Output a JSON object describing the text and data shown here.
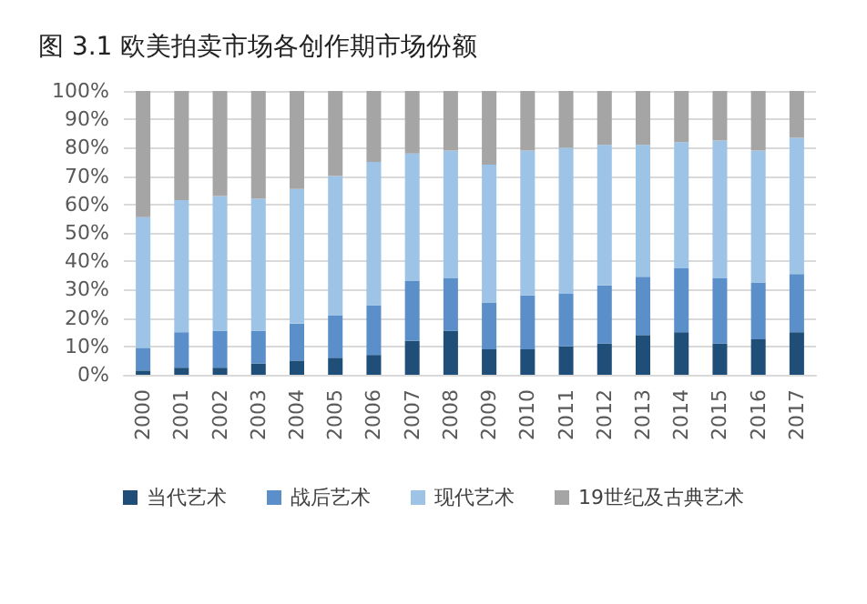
{
  "chart_data": {
    "type": "bar",
    "stacked": true,
    "title": "图 3.1 欧美拍卖市场各创作期市场份额",
    "categories": [
      "2000",
      "2001",
      "2002",
      "2003",
      "2004",
      "2005",
      "2006",
      "2007",
      "2008",
      "2009",
      "2010",
      "2011",
      "2012",
      "2013",
      "2014",
      "2015",
      "2016",
      "2017"
    ],
    "series": [
      {
        "name": "当代艺术",
        "color": "#1f4e79",
        "values": [
          1.5,
          2.5,
          2.5,
          4,
          5,
          6,
          7,
          12,
          15.5,
          9,
          9,
          10,
          11,
          14,
          15,
          11,
          12.5,
          15
        ]
      },
      {
        "name": "战后艺术",
        "color": "#5b8fc9",
        "values": [
          8,
          12.5,
          13,
          11.5,
          13,
          15,
          17.5,
          21,
          18.5,
          16.5,
          19,
          18.5,
          20.5,
          20.5,
          22.5,
          23,
          20,
          20.5
        ]
      },
      {
        "name": "现代艺术",
        "color": "#9dc3e6",
        "values": [
          46,
          46.5,
          47.5,
          46.5,
          47.5,
          49,
          50.5,
          45,
          45,
          48.5,
          51,
          51.5,
          49.5,
          46.5,
          44.5,
          48.5,
          46.5,
          48
        ]
      },
      {
        "name": "19世纪及古典艺术",
        "color": "#a5a5a5",
        "values": [
          44.5,
          38.5,
          37,
          38,
          34.5,
          30,
          25,
          22,
          21,
          26,
          21,
          20,
          19,
          19,
          18,
          17.5,
          21,
          16.5
        ]
      }
    ],
    "ylim": [
      0,
      100
    ],
    "yticks": [
      {
        "value": 0,
        "label": "0%"
      },
      {
        "value": 10,
        "label": "10%"
      },
      {
        "value": 20,
        "label": "20%"
      },
      {
        "value": 30,
        "label": "30%"
      },
      {
        "value": 40,
        "label": "40%"
      },
      {
        "value": 50,
        "label": "50%"
      },
      {
        "value": 60,
        "label": "60%"
      },
      {
        "value": 70,
        "label": "70%"
      },
      {
        "value": 80,
        "label": "80%"
      },
      {
        "value": 90,
        "label": "90%"
      },
      {
        "value": 100,
        "label": "100%"
      }
    ],
    "grid": "y",
    "legend": "bottom"
  }
}
